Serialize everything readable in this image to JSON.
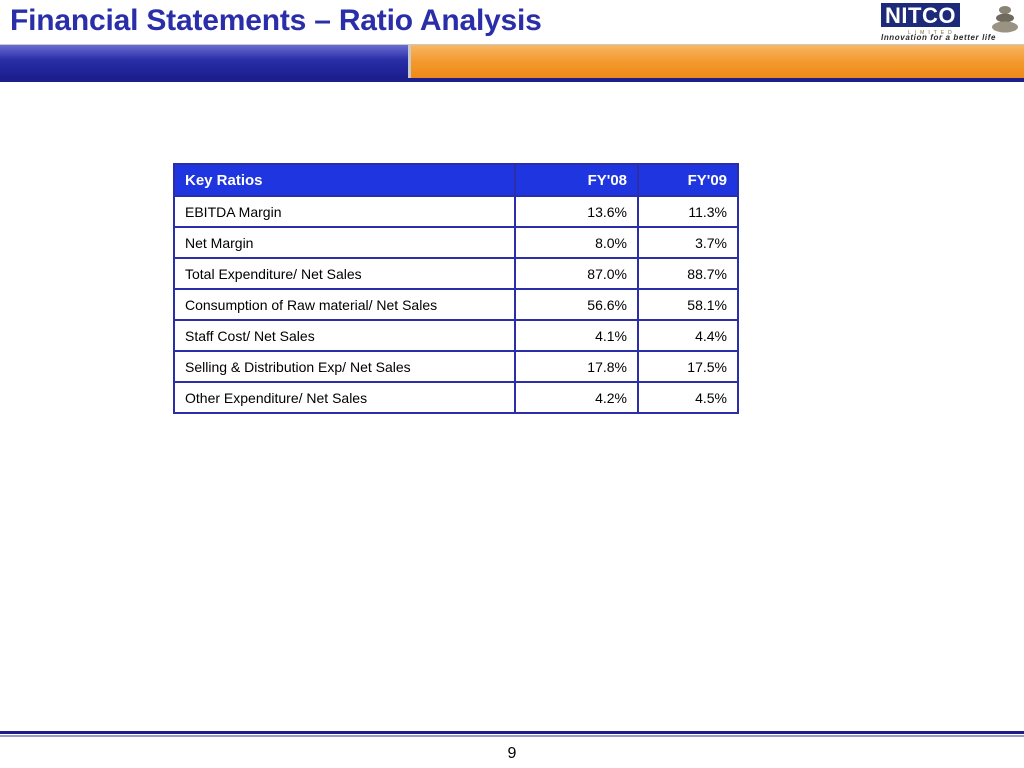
{
  "slide": {
    "title": "Financial Statements – Ratio Analysis",
    "page_number": "9"
  },
  "logo": {
    "brand": "NITCO",
    "sub": "LIMITED",
    "tagline": "Innovation for a better life"
  },
  "colors": {
    "title": "#2a2ea8",
    "header_bar_blue": "#2a2ea8",
    "header_bar_orange": "#f39a2e",
    "table_header": "#1f35e0",
    "table_border": "#2a2ea8"
  },
  "table": {
    "headers": [
      "Key Ratios",
      "FY'08",
      "FY'09"
    ],
    "rows": [
      [
        "EBITDA Margin",
        "13.6%",
        "11.3%"
      ],
      [
        "Net Margin",
        "8.0%",
        "3.7%"
      ],
      [
        "Total Expenditure/ Net Sales",
        "87.0%",
        "88.7%"
      ],
      [
        "Consumption of Raw material/ Net Sales",
        "56.6%",
        "58.1%"
      ],
      [
        "Staff Cost/ Net Sales",
        "4.1%",
        "4.4%"
      ],
      [
        "Selling & Distribution Exp/ Net Sales",
        "17.8%",
        "17.5%"
      ],
      [
        "Other Expenditure/ Net Sales",
        "4.2%",
        "4.5%"
      ]
    ]
  }
}
